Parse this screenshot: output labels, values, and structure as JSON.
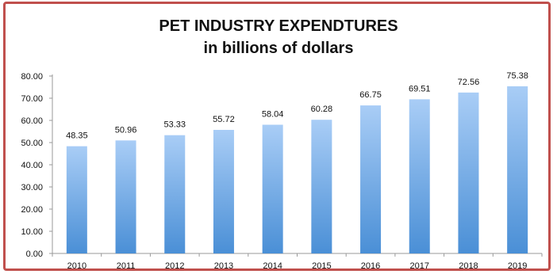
{
  "chart_data": {
    "type": "bar",
    "title": "PET INDUSTRY EXPENDTURES",
    "subtitle": "in billions of dollars",
    "categories": [
      "2010",
      "2011",
      "2012",
      "2013",
      "2014",
      "2015",
      "2016",
      "2017",
      "2018",
      "2019"
    ],
    "values": [
      48.35,
      50.96,
      53.33,
      55.72,
      58.04,
      60.28,
      66.75,
      69.51,
      72.56,
      75.38
    ],
    "value_labels": [
      "48.35",
      "50.96",
      "53.33",
      "55.72",
      "58.04",
      "60.28",
      "66.75",
      "69.51",
      "72.56",
      "75.38"
    ],
    "ylim": [
      0,
      80
    ],
    "yticks": [
      "0.00",
      "10.00",
      "20.00",
      "30.00",
      "40.00",
      "50.00",
      "60.00",
      "70.00",
      "80.00"
    ],
    "xlabel": "",
    "ylabel": "",
    "grid": false,
    "legend": "none",
    "colors": {
      "bar_top": "#a9cdf6",
      "bar_bottom": "#4a8fd6",
      "border": "#c0504d",
      "axis": "#999999"
    }
  }
}
